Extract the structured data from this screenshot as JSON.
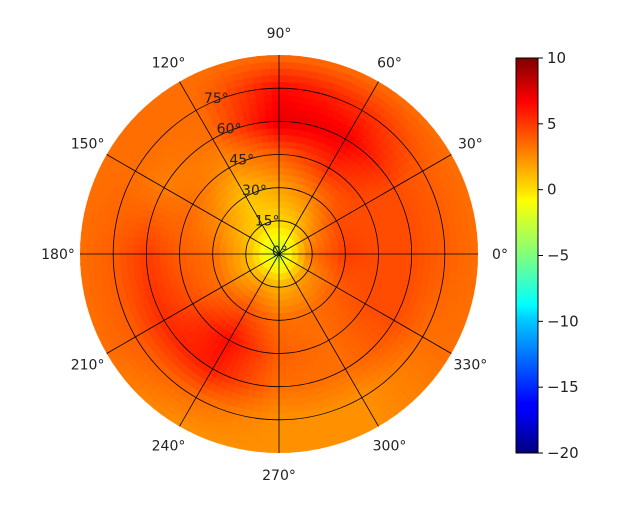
{
  "chart_data": {
    "type": "heatmap",
    "projection": "polar",
    "title": "",
    "angle_ticks": [
      {
        "value": 0,
        "label": "0°"
      },
      {
        "value": 30,
        "label": "30°"
      },
      {
        "value": 60,
        "label": "60°"
      },
      {
        "value": 90,
        "label": "90°"
      },
      {
        "value": 120,
        "label": "120°"
      },
      {
        "value": 150,
        "label": "150°"
      },
      {
        "value": 180,
        "label": "180°"
      },
      {
        "value": 210,
        "label": "210°"
      },
      {
        "value": 240,
        "label": "240°"
      },
      {
        "value": 270,
        "label": "270°"
      },
      {
        "value": 300,
        "label": "300°"
      },
      {
        "value": 330,
        "label": "330°"
      }
    ],
    "radial_ticks": [
      {
        "value": 0,
        "label": "0°"
      },
      {
        "value": 15,
        "label": "15°"
      },
      {
        "value": 30,
        "label": "30°"
      },
      {
        "value": 45,
        "label": "45°"
      },
      {
        "value": 60,
        "label": "60°"
      },
      {
        "value": 75,
        "label": "75°"
      }
    ],
    "r_range": [
      0,
      90
    ],
    "radial_label_angle": 112.5,
    "colormap": "jet",
    "colorbar": {
      "range": [
        -20,
        10
      ],
      "ticks": [
        {
          "value": 10,
          "label": "10"
        },
        {
          "value": 5,
          "label": "5"
        },
        {
          "value": 0,
          "label": "0"
        },
        {
          "value": -5,
          "label": "−5"
        },
        {
          "value": -10,
          "label": "−10"
        },
        {
          "value": -15,
          "label": "−15"
        },
        {
          "value": -20,
          "label": "−20"
        }
      ]
    },
    "field": {
      "theta": [
        0,
        30,
        60,
        90,
        120,
        150,
        180,
        210,
        240,
        270,
        300,
        330
      ],
      "r": [
        0,
        15,
        30,
        45,
        60,
        75,
        90
      ],
      "values": [
        [
          -3.0,
          3.0,
          4.5,
          4.0,
          4.0,
          3.5,
          3.0
        ],
        [
          -3.0,
          2.0,
          4.0,
          4.0,
          4.0,
          3.5,
          3.0
        ],
        [
          -3.0,
          0.5,
          2.5,
          5.0,
          6.5,
          5.0,
          3.0
        ],
        [
          -3.0,
          0.0,
          1.5,
          3.5,
          7.0,
          6.0,
          3.0
        ],
        [
          -3.0,
          0.0,
          0.5,
          2.0,
          3.0,
          3.0,
          3.0
        ],
        [
          -3.0,
          0.5,
          2.0,
          3.0,
          2.5,
          3.0,
          3.0
        ],
        [
          -3.0,
          1.0,
          3.0,
          3.5,
          4.5,
          3.5,
          3.0
        ],
        [
          -3.0,
          1.0,
          3.0,
          4.0,
          5.0,
          3.5,
          3.0
        ],
        [
          -3.0,
          1.5,
          4.0,
          6.0,
          5.5,
          3.0,
          2.0
        ],
        [
          -3.0,
          1.0,
          3.0,
          3.5,
          3.0,
          2.0,
          2.0
        ],
        [
          -3.0,
          1.5,
          3.0,
          3.0,
          3.0,
          2.0,
          2.0
        ],
        [
          -3.0,
          2.0,
          3.5,
          4.0,
          4.0,
          3.0,
          3.0
        ]
      ]
    }
  }
}
